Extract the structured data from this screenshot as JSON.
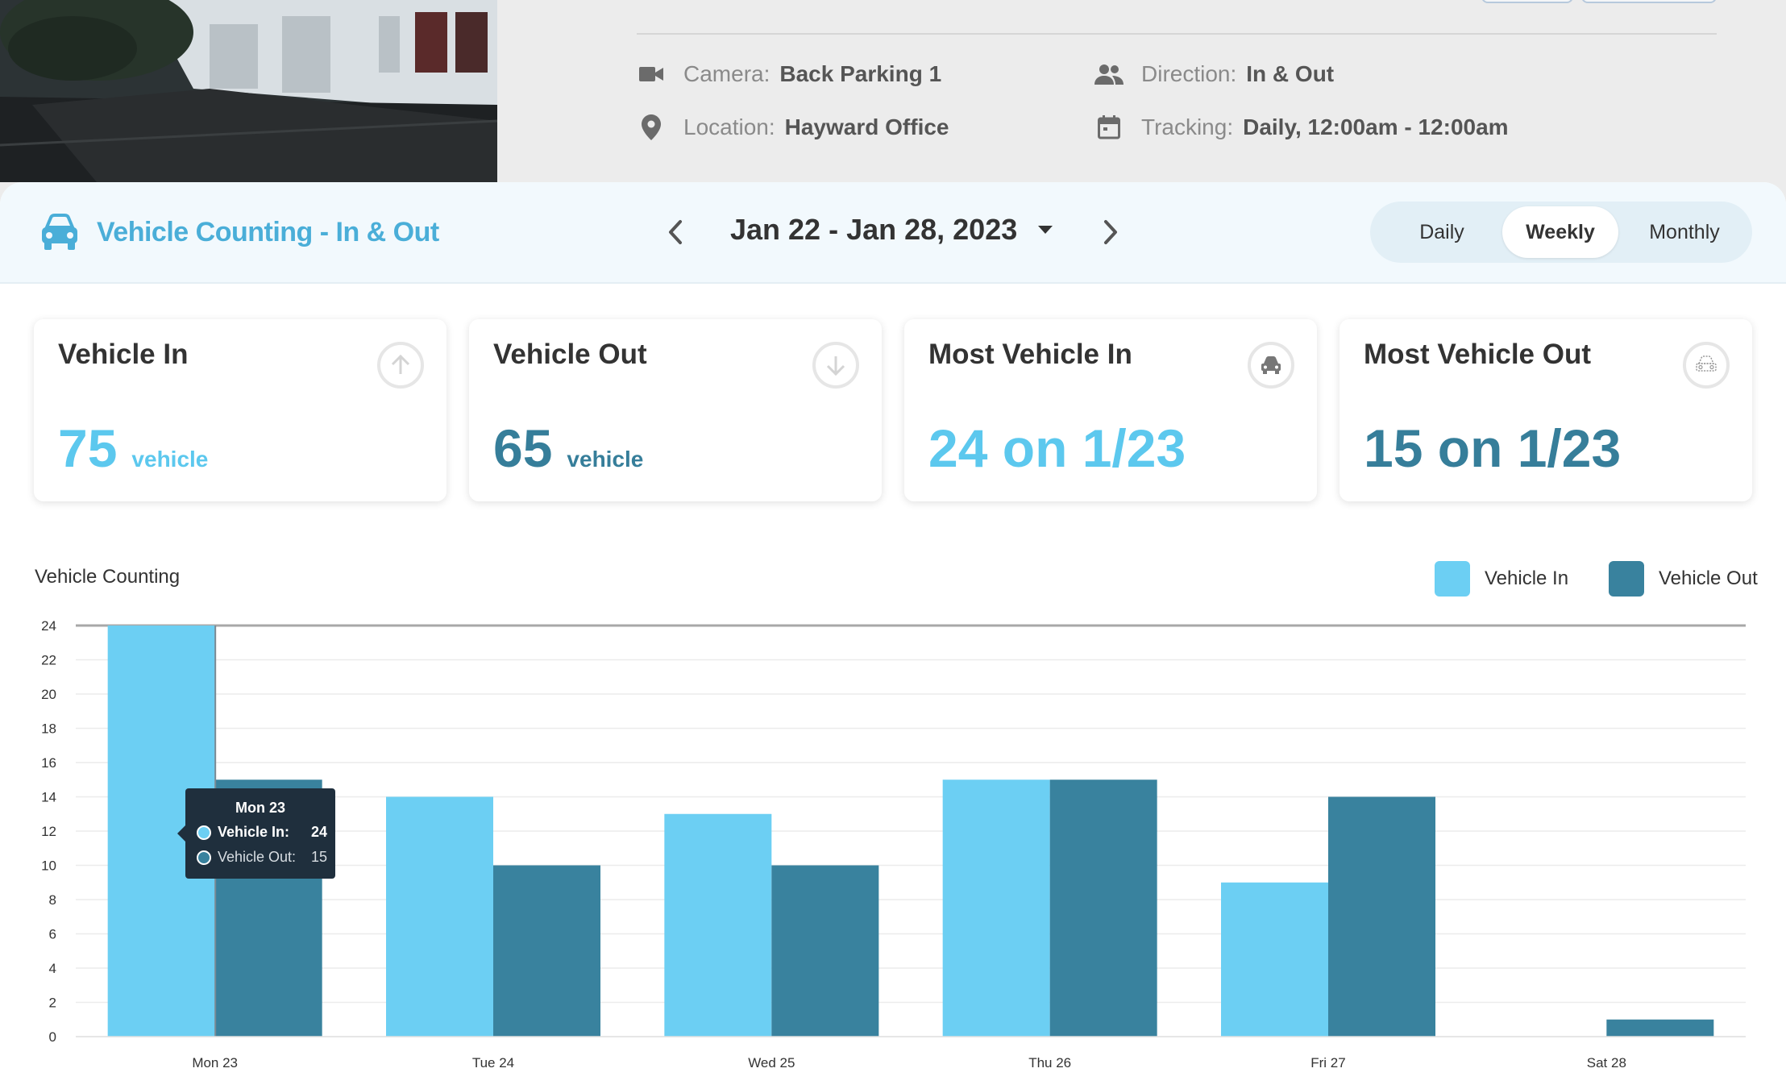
{
  "camera_info": {
    "camera_label": "Camera:",
    "camera_value": "Back Parking 1",
    "location_label": "Location:",
    "location_value": "Hayward Office",
    "direction_label": "Direction:",
    "direction_value": "In & Out",
    "tracking_label": "Tracking:",
    "tracking_value": "Daily, 12:00am - 12:00am"
  },
  "header": {
    "title": "Vehicle Counting - In & Out",
    "date_range": "Jan 22 - Jan 28, 2023",
    "periods": [
      "Daily",
      "Weekly",
      "Monthly"
    ],
    "active_period": "Weekly"
  },
  "cards": [
    {
      "title": "Vehicle In",
      "value": "75",
      "unit": "vehicle",
      "icon": "arrow-up-circle-icon"
    },
    {
      "title": "Vehicle Out",
      "value": "65",
      "unit": "vehicle",
      "icon": "arrow-down-circle-icon"
    },
    {
      "title": "Most Vehicle In",
      "value": "24 on 1/23",
      "unit": "",
      "icon": "car-front-icon"
    },
    {
      "title": "Most Vehicle Out",
      "value": "15 on 1/23",
      "unit": "",
      "icon": "car-outline-icon"
    }
  ],
  "colors": {
    "vehicle_in": "#6ccff3",
    "vehicle_out": "#39829e",
    "accent": "#4aaed8"
  },
  "chart_data": {
    "type": "bar",
    "title": "Vehicle Counting",
    "categories": [
      "Mon 23",
      "Tue 24",
      "Wed 25",
      "Thu 26",
      "Fri 27",
      "Sat 28"
    ],
    "series": [
      {
        "name": "Vehicle In",
        "values": [
          24,
          14,
          13,
          15,
          9,
          0
        ]
      },
      {
        "name": "Vehicle Out",
        "values": [
          15,
          10,
          10,
          15,
          14,
          1
        ]
      }
    ],
    "ylim": [
      0,
      24
    ],
    "yticks": [
      0,
      2,
      4,
      6,
      8,
      10,
      12,
      14,
      16,
      18,
      20,
      22,
      24
    ],
    "grid": true,
    "legend": "top-right"
  },
  "tooltip": {
    "title": "Mon 23",
    "in_label": "Vehicle In:",
    "in_value": "24",
    "out_label": "Vehicle Out:",
    "out_value": "15"
  }
}
